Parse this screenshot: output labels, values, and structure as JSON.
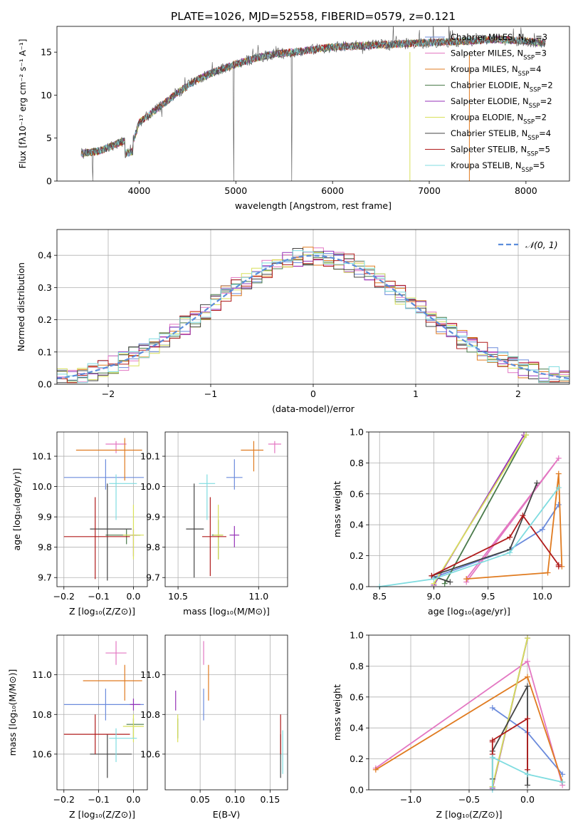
{
  "figure": {
    "title": "PLATE=1026, MJD=52558, FIBERID=0579, z=0.121"
  },
  "series_styles": [
    {
      "name": "Chabrier MILES",
      "color": "#6b8bdc"
    },
    {
      "name": "Salpeter MILES",
      "color": "#e377c2"
    },
    {
      "name": "Kroupa MILES",
      "color": "#e07b20"
    },
    {
      "name": "Chabrier ELODIE",
      "color": "#4a7a4a"
    },
    {
      "name": "Salpeter ELODIE",
      "color": "#9632b8"
    },
    {
      "name": "Kroupa ELODIE",
      "color": "#d8e05a"
    },
    {
      "name": "Chabrier STELIB",
      "color": "#444444"
    },
    {
      "name": "Salpeter STELIB",
      "color": "#b01b1b"
    },
    {
      "name": "Kroupa STELIB",
      "color": "#7fdce0"
    }
  ],
  "chart_data": [
    {
      "id": "spectrum",
      "type": "line",
      "xlabel": "wavelength [Angstrom, rest frame]",
      "ylabel": "Flux [fλ10⁻¹⁷ erg cm⁻² s⁻¹ A⁻¹]",
      "xlim": [
        3150,
        8450
      ],
      "ylim": [
        0,
        18
      ],
      "xticks": [
        4000,
        5000,
        6000,
        7000,
        8000
      ],
      "yticks": [
        0,
        5,
        10,
        15
      ],
      "grid": false,
      "legend_position": "top-right",
      "legend": [
        "Chabrier MILES, NSSP=3",
        "Salpeter MILES, NSSP=3",
        "Kroupa MILES, NSSP=4",
        "Chabrier ELODIE, NSSP=2",
        "Salpeter ELODIE, NSSP=2",
        "Kroupa ELODIE, NSSP=2",
        "Chabrier STELIB, NSSP=4",
        "Salpeter STELIB, NSSP=5",
        "Kroupa STELIB, NSSP=5"
      ],
      "data_color": "#555555",
      "continuum": {
        "x": [
          3400,
          3600,
          3800,
          3950,
          4000,
          4200,
          4400,
          4600,
          4800,
          5000,
          5200,
          5400,
          5600,
          5800,
          6000,
          6200,
          6400,
          6600,
          6800,
          7000,
          7200,
          7400,
          7700,
          8000,
          8200
        ],
        "y": [
          3.2,
          3.5,
          4.5,
          5.0,
          6.8,
          8.5,
          10.3,
          11.8,
          12.8,
          13.6,
          14.3,
          14.8,
          15.0,
          15.3,
          15.6,
          15.7,
          15.8,
          15.9,
          16.0,
          16.1,
          16.2,
          16.3,
          16.5,
          16.3,
          16.0
        ]
      }
    },
    {
      "id": "residuals",
      "type": "histogram",
      "xlabel": "(data-model)/error",
      "ylabel": "Normed distribution",
      "xlim": [
        -2.5,
        2.5
      ],
      "ylim": [
        0,
        0.48
      ],
      "xticks": [
        -2,
        -1,
        0,
        1,
        2
      ],
      "yticks": [
        0.0,
        0.1,
        0.2,
        0.3,
        0.4
      ],
      "grid": true,
      "legend_position": "top-right",
      "legend": [
        "𝒩(0, 1)"
      ],
      "reference_curve": {
        "name": "𝒩(0, 1)",
        "mean": 0,
        "sigma": 1,
        "color": "#5b8ddb"
      },
      "bins": {
        "start": -2.5,
        "width": 0.1,
        "count": 50
      }
    },
    {
      "id": "age_vs_Z",
      "type": "scatter",
      "xlabel": "Z [log₁₀(Z/Z⊙)]",
      "ylabel": "age  [log₁₀(age/yr)]",
      "xlim": [
        -0.22,
        0.04
      ],
      "ylim": [
        9.67,
        10.18
      ],
      "xticks": [
        -0.2,
        -0.1,
        0.0
      ],
      "yticks": [
        9.7,
        9.8,
        9.9,
        10.0,
        10.1
      ],
      "grid": true,
      "points": [
        {
          "x": -0.08,
          "y": 10.03,
          "xerr": [
            0.12,
            0.11
          ],
          "yerr": [
            0.04,
            0.06
          ],
          "color": "#6b8bdc"
        },
        {
          "x": -0.05,
          "y": 10.14,
          "xerr": [
            0.03,
            0.03
          ],
          "yerr": [
            0.03,
            0.01
          ],
          "color": "#e377c2"
        },
        {
          "x": -0.025,
          "y": 10.12,
          "xerr": [
            0.14,
            0.05
          ],
          "yerr": [
            0.1,
            0.04
          ],
          "color": "#e07b20"
        },
        {
          "x": -0.02,
          "y": 9.84,
          "xerr": [
            0.06,
            0.04
          ],
          "yerr": [
            0.03,
            0.02
          ],
          "color": "#4a7a4a"
        },
        {
          "x": 0.0,
          "y": 9.84,
          "xerr": [
            0.01,
            0.01
          ],
          "yerr": [
            0.07,
            0.02
          ],
          "color": "#9632b8"
        },
        {
          "x": 0.0,
          "y": 9.84,
          "xerr": [
            0.03,
            0.03
          ],
          "yerr": [
            0.08,
            0.1
          ],
          "color": "#d8e05a"
        },
        {
          "x": -0.075,
          "y": 9.86,
          "xerr": [
            0.05,
            0.07
          ],
          "yerr": [
            0.17,
            0.15
          ],
          "color": "#444444"
        },
        {
          "x": -0.11,
          "y": 9.835,
          "xerr": [
            0.09,
            0.1
          ],
          "yerr": [
            0.14,
            0.13
          ],
          "color": "#b01b1b"
        },
        {
          "x": -0.05,
          "y": 10.01,
          "xerr": [
            0.02,
            0.06
          ],
          "yerr": [
            0.12,
            0.03
          ],
          "color": "#7fdce0"
        }
      ]
    },
    {
      "id": "age_vs_mass",
      "type": "scatter",
      "xlabel": "mass [log₁₀(M/M⊙)]",
      "ylabel": "",
      "xlim": [
        10.42,
        11.18
      ],
      "ylim": [
        9.67,
        10.18
      ],
      "xticks": [
        10.5,
        11.0
      ],
      "yticks": [
        9.7,
        9.8,
        9.9,
        10.0,
        10.1
      ],
      "grid": true,
      "points": [
        {
          "x": 10.85,
          "y": 10.03,
          "xerr": [
            0.05,
            0.05
          ],
          "yerr": [
            0.04,
            0.06
          ],
          "color": "#6b8bdc"
        },
        {
          "x": 11.1,
          "y": 10.14,
          "xerr": [
            0.04,
            0.04
          ],
          "yerr": [
            0.03,
            0.01
          ],
          "color": "#e377c2"
        },
        {
          "x": 10.97,
          "y": 10.12,
          "xerr": [
            0.08,
            0.06
          ],
          "yerr": [
            0.07,
            0.03
          ],
          "color": "#e07b20"
        },
        {
          "x": 10.75,
          "y": 9.84,
          "xerr": [
            0.04,
            0.03
          ],
          "yerr": [
            0.08,
            0.05
          ],
          "color": "#4a7a4a"
        },
        {
          "x": 10.85,
          "y": 9.84,
          "xerr": [
            0.03,
            0.03
          ],
          "yerr": [
            0.04,
            0.03
          ],
          "color": "#9632b8"
        },
        {
          "x": 10.75,
          "y": 9.84,
          "xerr": [
            0.03,
            0.03
          ],
          "yerr": [
            0.08,
            0.1
          ],
          "color": "#d8e05a"
        },
        {
          "x": 10.6,
          "y": 9.86,
          "xerr": [
            0.05,
            0.06
          ],
          "yerr": [
            0.16,
            0.15
          ],
          "color": "#444444"
        },
        {
          "x": 10.7,
          "y": 9.835,
          "xerr": [
            0.05,
            0.1
          ],
          "yerr": [
            0.13,
            0.13
          ],
          "color": "#b01b1b"
        },
        {
          "x": 10.68,
          "y": 10.01,
          "xerr": [
            0.05,
            0.05
          ],
          "yerr": [
            0.12,
            0.03
          ],
          "color": "#7fdce0"
        }
      ]
    },
    {
      "id": "mass_weight_vs_age",
      "type": "line",
      "xlabel": "age  [log₁₀(age/yr)]",
      "ylabel": "mass weight",
      "xlim": [
        8.4,
        10.25
      ],
      "ylim": [
        0,
        1.0
      ],
      "xticks": [
        8.5,
        9.0,
        9.5,
        10.0
      ],
      "yticks": [
        0.0,
        0.2,
        0.4,
        0.6,
        0.8,
        1.0
      ],
      "grid": true,
      "series": [
        {
          "x": [
            9.0,
            9.7,
            10.0,
            10.15
          ],
          "y": [
            0.06,
            0.24,
            0.37,
            0.53
          ],
          "color": "#6b8bdc"
        },
        {
          "x": [
            9.3,
            10.15,
            9.3
          ],
          "y": [
            0.03,
            0.83,
            0.05
          ],
          "color": "#e377c2"
        },
        {
          "x": [
            9.3,
            10.05,
            10.15,
            10.18
          ],
          "y": [
            0.05,
            0.09,
            0.73,
            0.13
          ],
          "color": "#e07b20"
        },
        {
          "x": [
            9.1,
            9.85
          ],
          "y": [
            0.02,
            0.98
          ],
          "color": "#4a7a4a"
        },
        {
          "x": [
            9.0,
            9.83
          ],
          "y": [
            0.01,
            0.98
          ],
          "color": "#9632b8"
        },
        {
          "x": [
            9.0,
            9.85
          ],
          "y": [
            0.02,
            0.98
          ],
          "color": "#d8e05a"
        },
        {
          "x": [
            9.15,
            8.98,
            9.7,
            9.95
          ],
          "y": [
            0.03,
            0.07,
            0.24,
            0.67
          ],
          "color": "#444444"
        },
        {
          "x": [
            8.98,
            9.7,
            9.82,
            10.15,
            10.15
          ],
          "y": [
            0.07,
            0.32,
            0.46,
            0.14,
            0.13
          ],
          "color": "#b01b1b"
        },
        {
          "x": [
            8.5,
            9.0,
            9.7,
            10.15
          ],
          "y": [
            0.0,
            0.05,
            0.22,
            0.64
          ],
          "color": "#7fdce0"
        }
      ]
    },
    {
      "id": "mass_vs_Z",
      "type": "scatter",
      "xlabel": "Z [log₁₀(Z/Z⊙)]",
      "ylabel": "mass [log₁₀(M/M⊙)]",
      "xlim": [
        -0.22,
        0.04
      ],
      "ylim": [
        10.42,
        11.2
      ],
      "xticks": [
        -0.2,
        -0.1,
        0.0
      ],
      "yticks": [
        10.6,
        10.8,
        11.0
      ],
      "grid": true,
      "points": [
        {
          "x": -0.08,
          "y": 10.85,
          "xerr": [
            0.12,
            0.11
          ],
          "yerr": [
            0.08,
            0.08
          ],
          "color": "#6b8bdc"
        },
        {
          "x": -0.05,
          "y": 11.11,
          "xerr": [
            0.03,
            0.03
          ],
          "yerr": [
            0.06,
            0.06
          ],
          "color": "#e377c2"
        },
        {
          "x": -0.025,
          "y": 10.97,
          "xerr": [
            0.12,
            0.05
          ],
          "yerr": [
            0.1,
            0.08
          ],
          "color": "#e07b20"
        },
        {
          "x": 0.0,
          "y": 10.75,
          "xerr": [
            0.02,
            0.03
          ],
          "yerr": [
            0.07,
            0.03
          ],
          "color": "#4a7a4a"
        },
        {
          "x": 0.0,
          "y": 10.85,
          "xerr": [
            0.01,
            0.02
          ],
          "yerr": [
            0.03,
            0.03
          ],
          "color": "#9632b8"
        },
        {
          "x": 0.0,
          "y": 10.74,
          "xerr": [
            0.03,
            0.03
          ],
          "yerr": [
            0.08,
            0.06
          ],
          "color": "#d8e05a"
        },
        {
          "x": -0.075,
          "y": 10.6,
          "xerr": [
            0.05,
            0.07
          ],
          "yerr": [
            0.12,
            0.1
          ],
          "color": "#444444"
        },
        {
          "x": -0.11,
          "y": 10.7,
          "xerr": [
            0.09,
            0.1
          ],
          "yerr": [
            0.1,
            0.1
          ],
          "color": "#b01b1b"
        },
        {
          "x": -0.05,
          "y": 10.68,
          "xerr": [
            0.02,
            0.06
          ],
          "yerr": [
            0.12,
            0.05
          ],
          "color": "#7fdce0"
        }
      ]
    },
    {
      "id": "mass_vs_EBV",
      "type": "scatter",
      "xlabel": "E(B-V)",
      "ylabel": "",
      "xlim": [
        0.0,
        0.175
      ],
      "ylim": [
        10.42,
        11.2
      ],
      "xticks": [
        0.05,
        0.1,
        0.15
      ],
      "yticks": [
        10.6,
        10.8,
        11.0
      ],
      "grid": true,
      "points": [
        {
          "x": 0.055,
          "y": 10.85,
          "xerr": [
            0,
            0
          ],
          "yerr": [
            0.08,
            0.08
          ],
          "color": "#6b8bdc"
        },
        {
          "x": 0.055,
          "y": 11.11,
          "xerr": [
            0,
            0
          ],
          "yerr": [
            0.06,
            0.06
          ],
          "color": "#e377c2"
        },
        {
          "x": 0.062,
          "y": 10.97,
          "xerr": [
            0,
            0
          ],
          "yerr": [
            0.1,
            0.08
          ],
          "color": "#e07b20"
        },
        {
          "x": 0.018,
          "y": 10.75,
          "xerr": [
            0,
            0
          ],
          "yerr": [
            0.07,
            0.03
          ],
          "color": "#4a7a4a"
        },
        {
          "x": 0.015,
          "y": 10.87,
          "xerr": [
            0,
            0
          ],
          "yerr": [
            0.05,
            0.05
          ],
          "color": "#9632b8"
        },
        {
          "x": 0.018,
          "y": 10.74,
          "xerr": [
            0,
            0
          ],
          "yerr": [
            0.08,
            0.06
          ],
          "color": "#d8e05a"
        },
        {
          "x": 0.165,
          "y": 10.6,
          "xerr": [
            0,
            0
          ],
          "yerr": [
            0.12,
            0.1
          ],
          "color": "#444444"
        },
        {
          "x": 0.165,
          "y": 10.7,
          "xerr": [
            0,
            0
          ],
          "yerr": [
            0.1,
            0.1
          ],
          "color": "#b01b1b"
        },
        {
          "x": 0.168,
          "y": 10.62,
          "xerr": [
            0,
            0
          ],
          "yerr": [
            0.12,
            0.1
          ],
          "color": "#7fdce0"
        }
      ]
    },
    {
      "id": "mass_weight_vs_Z",
      "type": "line",
      "xlabel": "Z [log₁₀(Z/Z⊙)]",
      "ylabel": "mass weight",
      "xlim": [
        -1.36,
        0.36
      ],
      "ylim": [
        0,
        1.0
      ],
      "xticks": [
        -1.0,
        -0.5,
        0.0
      ],
      "yticks": [
        0.0,
        0.2,
        0.4,
        0.6,
        0.8,
        1.0
      ],
      "grid": true,
      "series": [
        {
          "x": [
            -0.3,
            0.0,
            0.3
          ],
          "y": [
            0.53,
            0.37,
            0.1
          ],
          "color": "#6b8bdc"
        },
        {
          "x": [
            -1.3,
            0.0,
            0.3
          ],
          "y": [
            0.14,
            0.83,
            0.03
          ],
          "color": "#e377c2"
        },
        {
          "x": [
            -1.3,
            0.0,
            0.3
          ],
          "y": [
            0.13,
            0.73,
            0.05
          ],
          "color": "#e07b20"
        },
        {
          "x": [
            -0.3,
            0.0
          ],
          "y": [
            0.02,
            0.98
          ],
          "color": "#4a7a4a"
        },
        {
          "x": [
            -0.3,
            0.0
          ],
          "y": [
            0.01,
            0.98
          ],
          "color": "#9632b8"
        },
        {
          "x": [
            -0.3,
            0.0
          ],
          "y": [
            0.02,
            0.98
          ],
          "color": "#d8e05a"
        },
        {
          "x": [
            -0.3,
            -0.3,
            0.0,
            0.0
          ],
          "y": [
            0.07,
            0.25,
            0.67,
            0.03
          ],
          "color": "#444444"
        },
        {
          "x": [
            -0.3,
            -0.3,
            -0.3,
            0.0,
            0.0
          ],
          "y": [
            0.31,
            0.23,
            0.32,
            0.46,
            0.13
          ],
          "color": "#b01b1b"
        },
        {
          "x": [
            -0.3,
            -0.3,
            0.0,
            0.3
          ],
          "y": [
            0.0,
            0.21,
            0.1,
            0.05
          ],
          "color": "#7fdce0"
        }
      ]
    }
  ]
}
